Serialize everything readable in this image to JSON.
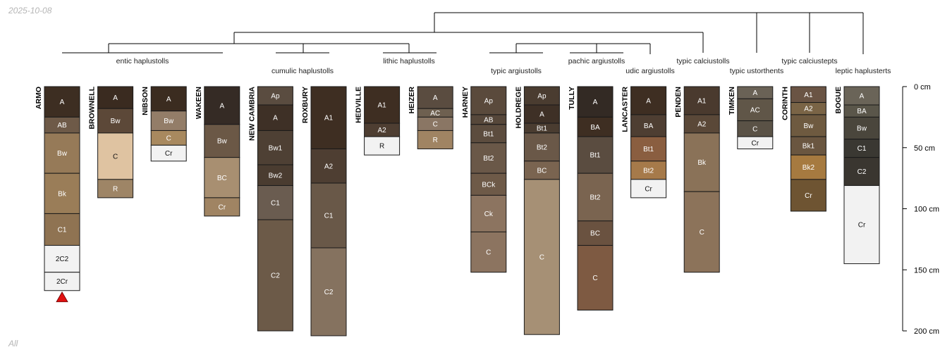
{
  "date_stamp": "2025-10-08",
  "footer_label": "All",
  "depth_axis": {
    "unit": "cm",
    "min": 0,
    "max": 200,
    "ticks": [
      0,
      50,
      100,
      150,
      200
    ],
    "tick_labels": [
      "0 cm",
      "50 cm",
      "100 cm",
      "150 cm",
      "200 cm"
    ]
  },
  "colors": {
    "horizon_border": "#1a1a1a",
    "tree_line": "#000000",
    "marker": "#e01010",
    "label_light": "#ffffff",
    "label_dark": "#111111"
  },
  "taxa": [
    {
      "label": "entic haplustolls",
      "row": 1
    },
    {
      "label": "cumulic haplustolls",
      "row": 2
    },
    {
      "label": "lithic haplustolls",
      "row": 1
    },
    {
      "label": "typic argiustolls",
      "row": 2
    },
    {
      "label": "pachic argiustolls",
      "row": 1
    },
    {
      "label": "udic argiustolls",
      "row": 2
    },
    {
      "label": "typic calciustolls",
      "row": 1
    },
    {
      "label": "typic ustorthents",
      "row": 2
    },
    {
      "label": "typic calciustepts",
      "row": 1
    },
    {
      "label": "leptic haplusterts",
      "row": 2
    }
  ],
  "profiles": [
    {
      "name": "ARMO",
      "marker": true,
      "horizons": [
        {
          "name": "A",
          "top": 0,
          "bottom": 25,
          "color": "#3d2e22"
        },
        {
          "name": "AB",
          "top": 25,
          "bottom": 38,
          "color": "#6e5a48"
        },
        {
          "name": "Bw",
          "top": 38,
          "bottom": 71,
          "color": "#967a58"
        },
        {
          "name": "Bk",
          "top": 71,
          "bottom": 104,
          "color": "#9a7d58"
        },
        {
          "name": "C1",
          "top": 104,
          "bottom": 130,
          "color": "#8f7352"
        },
        {
          "name": "2C2",
          "top": 130,
          "bottom": 152,
          "color": "#f2f2f2"
        },
        {
          "name": "2Cr",
          "top": 152,
          "bottom": 167,
          "color": "#f2f2f2"
        }
      ]
    },
    {
      "name": "BROWNELL",
      "horizons": [
        {
          "name": "A",
          "top": 0,
          "bottom": 18,
          "color": "#3a2b20"
        },
        {
          "name": "Bw",
          "top": 18,
          "bottom": 38,
          "color": "#5c4838"
        },
        {
          "name": "C",
          "top": 38,
          "bottom": 76,
          "color": "#dfc3a1"
        },
        {
          "name": "R",
          "top": 76,
          "bottom": 91,
          "color": "#9e8566"
        }
      ]
    },
    {
      "name": "NIBSON",
      "horizons": [
        {
          "name": "A",
          "top": 0,
          "bottom": 20,
          "color": "#3b2c20"
        },
        {
          "name": "Bw",
          "top": 20,
          "bottom": 36,
          "color": "#937d68"
        },
        {
          "name": "C",
          "top": 36,
          "bottom": 48,
          "color": "#a8895f"
        },
        {
          "name": "Cr",
          "top": 48,
          "bottom": 61,
          "color": "#f2f2f2"
        }
      ]
    },
    {
      "name": "WAKEEN",
      "horizons": [
        {
          "name": "A",
          "top": 0,
          "bottom": 31,
          "color": "#352b25"
        },
        {
          "name": "Bw",
          "top": 31,
          "bottom": 58,
          "color": "#6b5846"
        },
        {
          "name": "BC",
          "top": 58,
          "bottom": 91,
          "color": "#a88f71"
        },
        {
          "name": "Cr",
          "top": 91,
          "bottom": 106,
          "color": "#a08463"
        }
      ]
    },
    {
      "name": "NEW CAMBRIA",
      "horizons": [
        {
          "name": "Ap",
          "top": 0,
          "bottom": 15,
          "color": "#5a4c40"
        },
        {
          "name": "A",
          "top": 15,
          "bottom": 36,
          "color": "#3e3026"
        },
        {
          "name": "Bw1",
          "top": 36,
          "bottom": 64,
          "color": "#4e4034"
        },
        {
          "name": "Bw2",
          "top": 64,
          "bottom": 81,
          "color": "#4a3c30"
        },
        {
          "name": "C1",
          "top": 81,
          "bottom": 109,
          "color": "#6a5c50"
        },
        {
          "name": "C2",
          "top": 109,
          "bottom": 200,
          "color": "#6c5a48"
        }
      ]
    },
    {
      "name": "ROXBURY",
      "horizons": [
        {
          "name": "A1",
          "top": 0,
          "bottom": 51,
          "color": "#3e2e22"
        },
        {
          "name": "A2",
          "top": 51,
          "bottom": 79,
          "color": "#4e3e32"
        },
        {
          "name": "C1",
          "top": 79,
          "bottom": 132,
          "color": "#695848"
        },
        {
          "name": "C2",
          "top": 132,
          "bottom": 204,
          "color": "#85725f"
        }
      ]
    },
    {
      "name": "HEDVILLE",
      "horizons": [
        {
          "name": "A1",
          "top": 0,
          "bottom": 30,
          "color": "#3e2e22"
        },
        {
          "name": "A2",
          "top": 30,
          "bottom": 41,
          "color": "#4e3e32"
        },
        {
          "name": "R",
          "top": 41,
          "bottom": 56,
          "color": "#f2f2f2"
        }
      ]
    },
    {
      "name": "HEIZER",
      "horizons": [
        {
          "name": "A",
          "top": 0,
          "bottom": 18,
          "color": "#5a4c40"
        },
        {
          "name": "AC",
          "top": 18,
          "bottom": 25,
          "color": "#6e6050"
        },
        {
          "name": "C",
          "top": 25,
          "bottom": 36,
          "color": "#8a7664"
        },
        {
          "name": "R",
          "top": 36,
          "bottom": 51,
          "color": "#a08463"
        }
      ]
    },
    {
      "name": "HARNEY",
      "horizons": [
        {
          "name": "Ap",
          "top": 0,
          "bottom": 23,
          "color": "#5a4a3c"
        },
        {
          "name": "AB",
          "top": 23,
          "bottom": 31,
          "color": "#56473a"
        },
        {
          "name": "Bt1",
          "top": 31,
          "bottom": 46,
          "color": "#5c4c3e"
        },
        {
          "name": "Bt2",
          "top": 46,
          "bottom": 71,
          "color": "#6a5848"
        },
        {
          "name": "BCk",
          "top": 71,
          "bottom": 89,
          "color": "#6e5a48"
        },
        {
          "name": "Ck",
          "top": 89,
          "bottom": 119,
          "color": "#8c7460"
        },
        {
          "name": "C",
          "top": 119,
          "bottom": 152,
          "color": "#8c7460"
        }
      ]
    },
    {
      "name": "HOLDREGE",
      "horizons": [
        {
          "name": "Ap",
          "top": 0,
          "bottom": 15,
          "color": "#4a3c30"
        },
        {
          "name": "A",
          "top": 15,
          "bottom": 30,
          "color": "#3e3026"
        },
        {
          "name": "Bt1",
          "top": 30,
          "bottom": 38,
          "color": "#4a3c30"
        },
        {
          "name": "Bt2",
          "top": 38,
          "bottom": 61,
          "color": "#6a5848"
        },
        {
          "name": "BC",
          "top": 61,
          "bottom": 76,
          "color": "#7a6450"
        },
        {
          "name": "C",
          "top": 76,
          "bottom": 203,
          "color": "#a69075"
        }
      ]
    },
    {
      "name": "TULLY",
      "horizons": [
        {
          "name": "A",
          "top": 0,
          "bottom": 25,
          "color": "#332a24"
        },
        {
          "name": "BA",
          "top": 25,
          "bottom": 41,
          "color": "#3e2e22"
        },
        {
          "name": "Bt1",
          "top": 41,
          "bottom": 71,
          "color": "#5a4c40"
        },
        {
          "name": "Bt2",
          "top": 71,
          "bottom": 110,
          "color": "#7a6450"
        },
        {
          "name": "BC",
          "top": 110,
          "bottom": 130,
          "color": "#6a5240"
        },
        {
          "name": "C",
          "top": 130,
          "bottom": 183,
          "color": "#7e5a42"
        }
      ]
    },
    {
      "name": "LANCASTER",
      "horizons": [
        {
          "name": "A",
          "top": 0,
          "bottom": 23,
          "color": "#3e2e22"
        },
        {
          "name": "BA",
          "top": 23,
          "bottom": 41,
          "color": "#4e3e32"
        },
        {
          "name": "Bt1",
          "top": 41,
          "bottom": 61,
          "color": "#8a5e40"
        },
        {
          "name": "Bt2",
          "top": 61,
          "bottom": 76,
          "color": "#a67a4a"
        },
        {
          "name": "Cr",
          "top": 76,
          "bottom": 91,
          "color": "#f2f2f2"
        }
      ]
    },
    {
      "name": "PENDEN",
      "horizons": [
        {
          "name": "A1",
          "top": 0,
          "bottom": 23,
          "color": "#4a3a2e"
        },
        {
          "name": "A2",
          "top": 23,
          "bottom": 38,
          "color": "#5a4838"
        },
        {
          "name": "Bk",
          "top": 38,
          "bottom": 86,
          "color": "#8a7258"
        },
        {
          "name": "C",
          "top": 86,
          "bottom": 152,
          "color": "#8c735a"
        }
      ]
    },
    {
      "name": "TIMKEN",
      "horizons": [
        {
          "name": "A",
          "top": 0,
          "bottom": 10,
          "color": "#6a6256"
        },
        {
          "name": "AC",
          "top": 10,
          "bottom": 28,
          "color": "#605648"
        },
        {
          "name": "C",
          "top": 28,
          "bottom": 41,
          "color": "#5a5246"
        },
        {
          "name": "Cr",
          "top": 41,
          "bottom": 51,
          "color": "#f2f2f2"
        }
      ]
    },
    {
      "name": "CORINTH",
      "horizons": [
        {
          "name": "A1",
          "top": 0,
          "bottom": 13,
          "color": "#6a5444"
        },
        {
          "name": "A2",
          "top": 13,
          "bottom": 23,
          "color": "#7a6446"
        },
        {
          "name": "Bw",
          "top": 23,
          "bottom": 41,
          "color": "#6e5a40"
        },
        {
          "name": "Bk1",
          "top": 41,
          "bottom": 56,
          "color": "#6a5640"
        },
        {
          "name": "Bk2",
          "top": 56,
          "bottom": 76,
          "color": "#a67a40"
        },
        {
          "name": "Cr",
          "top": 76,
          "bottom": 102,
          "color": "#6e5432"
        }
      ]
    },
    {
      "name": "BOGUE",
      "horizons": [
        {
          "name": "A",
          "top": 0,
          "bottom": 15,
          "color": "#6a6458"
        },
        {
          "name": "BA",
          "top": 15,
          "bottom": 25,
          "color": "#5a564a"
        },
        {
          "name": "Bw",
          "top": 25,
          "bottom": 43,
          "color": "#4a463c"
        },
        {
          "name": "C1",
          "top": 43,
          "bottom": 58,
          "color": "#3a3832"
        },
        {
          "name": "C2",
          "top": 58,
          "bottom": 81,
          "color": "#3a3630"
        },
        {
          "name": "Cr",
          "top": 81,
          "bottom": 145,
          "color": "#f2f2f2"
        }
      ]
    }
  ]
}
